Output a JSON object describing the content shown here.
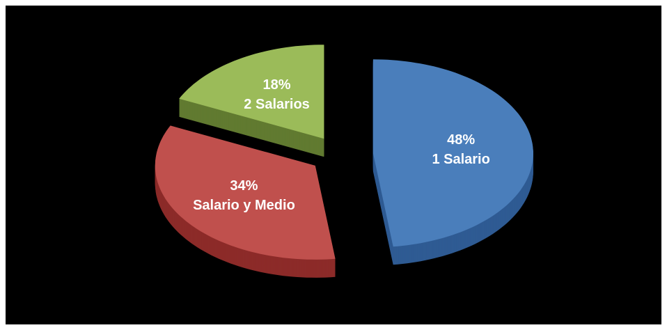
{
  "chart_data": {
    "type": "pie3d",
    "categories": [
      "1 Salario",
      "Salario y Medio",
      "2 Salarios"
    ],
    "values": [
      48,
      34,
      18
    ],
    "value_labels": [
      "48%",
      "34%",
      "18%"
    ],
    "colors": [
      "#4a7ebb",
      "#c0504d",
      "#9bbb59"
    ],
    "side_colors": [
      "#2f5b93",
      "#8c2b29",
      "#617a30"
    ],
    "label_colors": [
      "#ffffff",
      "#ffffff",
      "#ffffff"
    ]
  }
}
